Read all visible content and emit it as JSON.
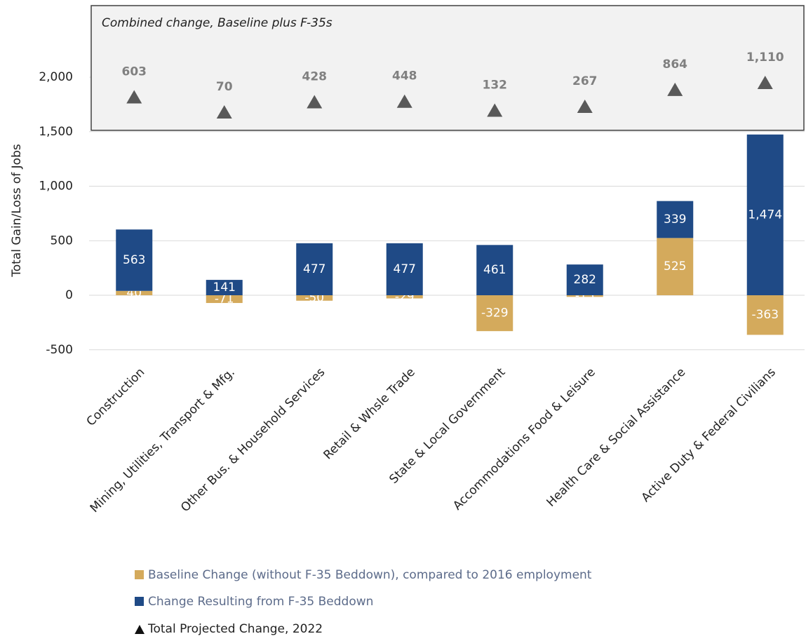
{
  "chart_data": {
    "type": "bar",
    "stacked": true,
    "inset_title": "Combined change, Baseline plus F-35s",
    "y_label": "Total Gain/Loss of Jobs",
    "categories": [
      "Construction",
      "Mining, Utilities, Transport & Mfg.",
      "Other Bus. & Household Services",
      "Retail & Whsle Trade",
      "State & Local Government",
      "Accommodations Food & Leisure",
      "Health Care & Social Assistance",
      "Active Duty & Federal Civilians"
    ],
    "series": [
      {
        "name": "Baseline Change (without F-35 Beddown), compared to 2016 employment",
        "color": "#d4aa5c",
        "values": [
          40,
          -71,
          -50,
          -29,
          -329,
          -15,
          525,
          -363
        ]
      },
      {
        "name": "Change Resulting from F-35 Beddown",
        "color": "#1f4a86",
        "values": [
          563,
          141,
          477,
          477,
          461,
          282,
          339,
          1474
        ],
        "value_labels": [
          "563",
          "141",
          "477",
          "477",
          "461",
          "282",
          "339",
          "1,474"
        ]
      }
    ],
    "totals": {
      "name": "Total Projected Change, 2022",
      "color": "#595959",
      "marker": "triangle",
      "values": [
        603,
        70,
        428,
        448,
        132,
        267,
        864,
        1110
      ],
      "value_labels": [
        "603",
        "70",
        "428",
        "448",
        "132",
        "267",
        "864",
        "1,110"
      ]
    },
    "ylim": [
      -500,
      2000
    ],
    "yticks": [
      -500,
      0,
      500,
      {
        "value": 1000,
        "label": "1,000"
      },
      {
        "value": 1500,
        "label": "1,500"
      },
      {
        "value": 2000,
        "label": "2,000"
      }
    ],
    "grid": true
  }
}
